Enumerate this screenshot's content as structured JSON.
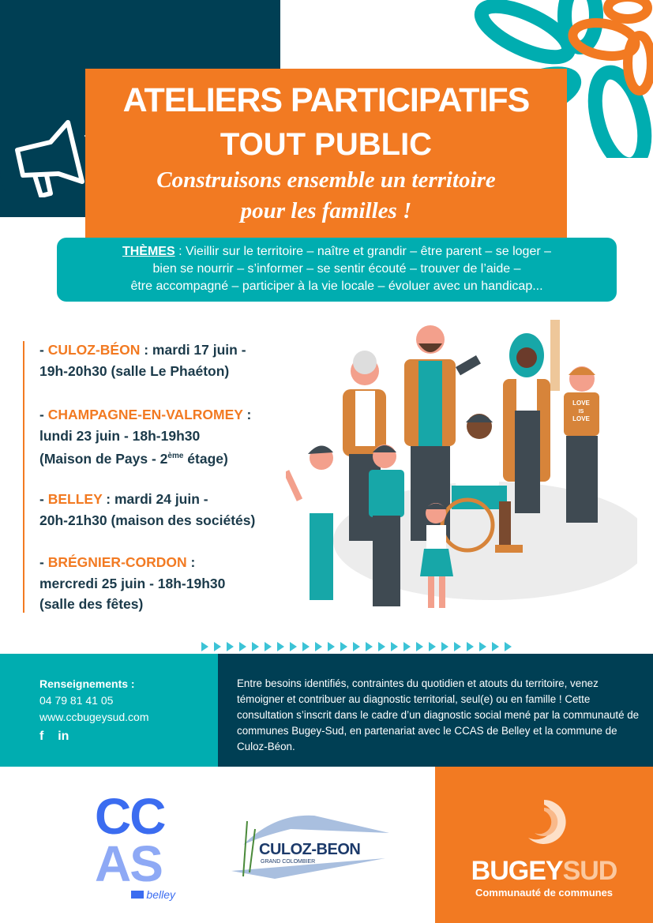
{
  "header": {
    "title": "ATELIERS PARTICIPATIFS",
    "subtitle": "TOUT PUBLIC",
    "tagline_line1": "Construisons ensemble un territoire",
    "tagline_line2": "pour les familles !",
    "icon": "megaphone-icon"
  },
  "themes": {
    "label": "THÈMES",
    "line1": " : Vieillir sur le territoire – naître et grandir – être parent – se loger –",
    "line2": "bien se nourrir – s’informer – se sentir écouté – trouver de l’aide –",
    "line3": "être accompagné – participer à la vie locale – évoluer avec un handicap..."
  },
  "events": [
    {
      "city": "CULOZ-BÉON",
      "rest1": " : mardi 17 juin -",
      "line2": "19h-20h30 (salle Le Phaéton)"
    },
    {
      "city": "CHAMPAGNE-EN-VALROMEY",
      "rest1": " :",
      "line2": "lundi 23 juin - 18h-19h30",
      "line3_a": "(Maison de Pays - 2",
      "line3_sup": "ème",
      "line3_b": " étage)"
    },
    {
      "city": "BELLEY",
      "rest1": " : mardi 24 juin -",
      "line2": "20h-21h30 (maison des sociétés)"
    },
    {
      "city": "BRÉGNIER-CORDON",
      "rest1": " :",
      "line2": "mercredi 25 juin - 18h-19h30",
      "line3": "(salle des fêtes)"
    }
  ],
  "illustration": {
    "shirt_text_1": "LOVE",
    "shirt_text_2": "IS",
    "shirt_text_3": "LOVE"
  },
  "contact": {
    "label": "Renseignements :",
    "phone": "04 79 81 41 05",
    "website": "www.ccbugeysud.com",
    "facebook": "f",
    "linkedin": "in"
  },
  "description": "Entre besoins identifiés, contraintes du quotidien et atouts du territoire, venez témoigner et contribuer au diagnostic territorial, seul(e) ou en famille ! Cette consultation s’inscrit dans le cadre d’un diagnostic social mené par la communauté de communes Bugey-Sud, en partenariat avec le CCAS de Belley et la commune de Culoz-Béon.",
  "logos": {
    "ccas_1": "CC",
    "ccas_2": "AS",
    "ccas_sub": "belley",
    "culoz": "CULOZ-BEON",
    "culoz_sub": "GRAND COLOMBIER",
    "bugey_a": "BUGEY",
    "bugey_b": "SUD",
    "bugey_sub": "Communauté de communes"
  },
  "colors": {
    "orange": "#f27a22",
    "teal": "#00adb0",
    "navy": "#003f54",
    "text": "#1b3a4a"
  }
}
